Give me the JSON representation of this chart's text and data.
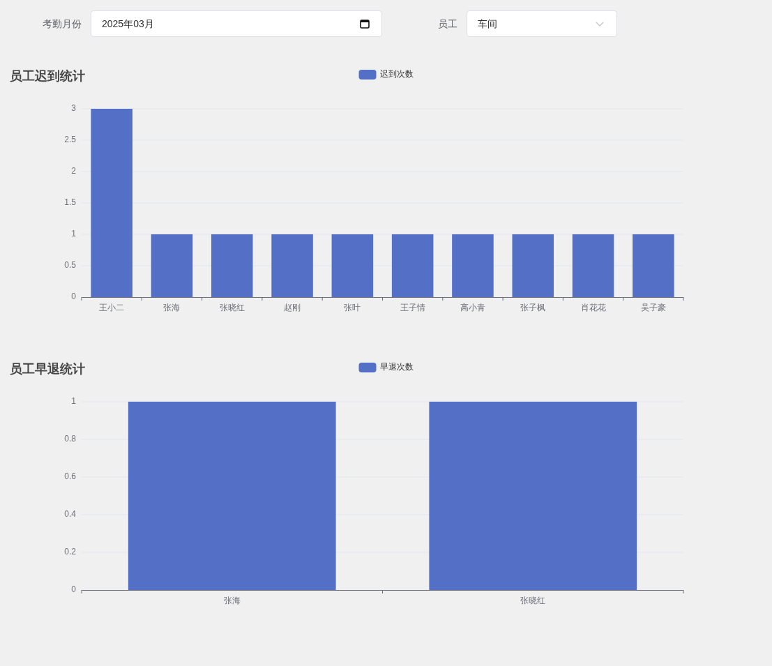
{
  "chart_data": [
    {
      "type": "other",
      "annotations": [
        "考勤月份",
        "2025年03月",
        "员工",
        "车间"
      ]
    },
    {
      "type": "bar",
      "title": "员工迟到统计",
      "categories": [
        "王小二",
        "张海",
        "张晓红",
        "赵刚",
        "张叶",
        "王子情",
        "高小青",
        "张子枫",
        "肖花花",
        "吴子豪"
      ],
      "series": [
        {
          "name": "迟到次数",
          "color": "#5470c6",
          "values": [
            3,
            1,
            1,
            1,
            1,
            1,
            1,
            1,
            1,
            1
          ]
        }
      ],
      "ylim": [
        0,
        3
      ],
      "yticks": [
        0,
        0.5,
        1,
        1.5,
        2,
        2.5,
        3
      ],
      "grid": "y",
      "legend": "top"
    },
    {
      "type": "bar",
      "title": "员工早退统计",
      "categories": [
        "张海",
        "张晓红"
      ],
      "series": [
        {
          "name": "早退次数",
          "color": "#5470c6",
          "values": [
            1,
            1
          ]
        }
      ],
      "ylim": [
        0,
        1
      ],
      "yticks": [
        0,
        0.2,
        0.4,
        0.6,
        0.8,
        1
      ],
      "grid": "y",
      "legend": "top"
    }
  ]
}
